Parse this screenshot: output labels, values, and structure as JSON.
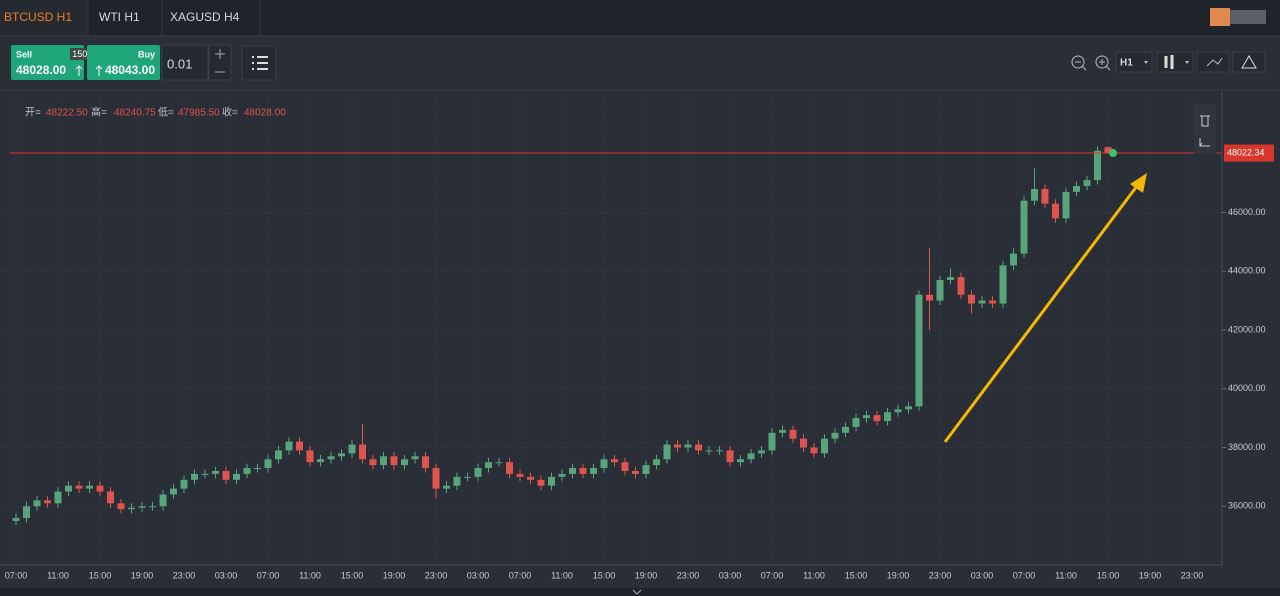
{
  "tabs": [
    "BTCUSD H1",
    "WTI H1",
    "XAGUSD H4"
  ],
  "trade_panel": {
    "sell_label": "Sell",
    "sell_price": "48028.00",
    "spread": "150.00",
    "buy_label": "Buy",
    "buy_price": "48043.00",
    "lot": "0.01"
  },
  "toolbar": {
    "timeframe": "H1"
  },
  "chart_data": {
    "type": "candlestick",
    "ohlc_labels": [
      "开=",
      "高=",
      "低=",
      "收="
    ],
    "ohlc_values": [
      "48222.50",
      "48240.75",
      "47985.50",
      "48028.00"
    ],
    "categories": [
      "07:00",
      null,
      null,
      null,
      "11:00",
      null,
      null,
      null,
      "15:00",
      null,
      null,
      null,
      "19:00",
      null,
      null,
      null,
      "23:00",
      null,
      null,
      null,
      "03:00",
      null,
      null,
      null,
      "07:00",
      null,
      null,
      null,
      "11:00",
      null,
      null,
      null,
      "15:00",
      null,
      null,
      null,
      "19:00",
      null,
      null,
      null,
      "23:00",
      null,
      null,
      null,
      "03:00",
      null,
      null,
      null,
      "07:00",
      null,
      null,
      null,
      "11:00",
      null,
      null,
      null,
      "15:00",
      null,
      null,
      null,
      "19:00",
      null,
      null,
      null,
      "23:00",
      null,
      null,
      null,
      "03:00",
      null,
      null,
      null,
      "07:00",
      null,
      null,
      null,
      "11:00",
      null,
      null,
      null,
      "15:00",
      null,
      null,
      null,
      "19:00",
      null,
      null,
      null,
      "23:00",
      null,
      null,
      null,
      "03:00",
      null,
      null,
      null,
      "07:00",
      null,
      null,
      null,
      "11:00",
      null,
      null,
      null,
      "15:00",
      null,
      null,
      null,
      "19:00",
      null,
      null,
      null,
      "23:00"
    ],
    "open": [
      35500,
      35600,
      36000,
      36200,
      36100,
      36500,
      36700,
      36600,
      36700,
      36500,
      36100,
      35900,
      35950,
      36000,
      36000,
      36400,
      36600,
      36900,
      37100,
      37100,
      37200,
      36900,
      37100,
      37300,
      37300,
      37600,
      37900,
      38200,
      37900,
      37500,
      37600,
      37700,
      37800,
      38100,
      37600,
      37400,
      37700,
      37400,
      37600,
      37700,
      37300,
      36600,
      36700,
      37000,
      37000,
      37300,
      37500,
      37500,
      37100,
      37000,
      36900,
      36700,
      37000,
      37100,
      37300,
      37100,
      37300,
      37600,
      37500,
      37200,
      37100,
      37400,
      37600,
      38100,
      38000,
      38100,
      37900,
      37900,
      37900,
      37500,
      37600,
      37800,
      37900,
      38500,
      38600,
      38300,
      38000,
      37800,
      38300,
      38500,
      38700,
      39000,
      39100,
      38900,
      39200,
      39300,
      39400,
      43200,
      43000,
      43700,
      43800,
      43200,
      42900,
      43000,
      42900,
      44200,
      44600,
      46400,
      46800,
      46300,
      45800,
      46700,
      46900,
      47100,
      48222.5,
      null,
      null,
      null,
      null,
      null,
      null,
      null,
      null
    ],
    "high": [
      35750,
      36150,
      36350,
      36350,
      36650,
      36850,
      36850,
      36850,
      36850,
      36650,
      36250,
      36100,
      36150,
      36150,
      36550,
      36750,
      37050,
      37250,
      37250,
      37350,
      37350,
      37250,
      37450,
      37450,
      37750,
      38050,
      38350,
      38350,
      38050,
      37750,
      37850,
      37950,
      38250,
      38800,
      37750,
      37850,
      37850,
      37750,
      37850,
      37850,
      37450,
      36850,
      37150,
      37150,
      37450,
      37650,
      37650,
      37650,
      37250,
      37150,
      37050,
      37150,
      37250,
      37450,
      37450,
      37450,
      37750,
      37750,
      37650,
      37350,
      37550,
      37750,
      38250,
      38250,
      38250,
      38250,
      38050,
      38050,
      38050,
      37750,
      37950,
      38050,
      38650,
      38750,
      38750,
      38450,
      38150,
      38450,
      38650,
      38850,
      39150,
      39250,
      39250,
      39350,
      39450,
      39550,
      43350,
      44800,
      43850,
      44100,
      43950,
      43350,
      43150,
      43150,
      44350,
      44800,
      46550,
      47500,
      46950,
      46450,
      46850,
      47050,
      47250,
      48250,
      48240.75,
      null,
      null,
      null,
      null,
      null,
      null,
      null,
      null
    ],
    "low": [
      35350,
      35450,
      35850,
      35950,
      35950,
      36350,
      36450,
      36450,
      36350,
      35950,
      35750,
      35750,
      35800,
      35850,
      35850,
      36250,
      36450,
      36750,
      36950,
      36950,
      36750,
      36750,
      36950,
      37150,
      37150,
      37450,
      37750,
      37750,
      37350,
      37350,
      37450,
      37550,
      37650,
      37450,
      37250,
      37250,
      37250,
      37250,
      37450,
      37150,
      36250,
      36450,
      36550,
      36850,
      36850,
      37150,
      37350,
      36950,
      36850,
      36750,
      36550,
      36550,
      36850,
      36950,
      36950,
      36950,
      37150,
      37350,
      37050,
      36950,
      36950,
      37250,
      37450,
      37850,
      37850,
      37750,
      37750,
      37750,
      37350,
      37350,
      37450,
      37650,
      37750,
      38350,
      38150,
      37850,
      37650,
      37650,
      38150,
      38350,
      38550,
      38850,
      38750,
      38750,
      39050,
      39150,
      39250,
      42000,
      42850,
      43550,
      43050,
      42550,
      42750,
      42750,
      42750,
      44050,
      44450,
      46250,
      46150,
      45650,
      45650,
      46550,
      46750,
      46950,
      47985.5,
      null,
      null,
      null,
      null,
      null,
      null,
      null,
      null
    ],
    "close": [
      35600,
      36000,
      36200,
      36100,
      36500,
      36700,
      36600,
      36700,
      36500,
      36100,
      35900,
      35950,
      36000,
      36000,
      36400,
      36600,
      36900,
      37100,
      37100,
      37200,
      36900,
      37100,
      37300,
      37300,
      37600,
      37900,
      38200,
      37900,
      37500,
      37600,
      37700,
      37800,
      38100,
      37600,
      37400,
      37700,
      37400,
      37600,
      37700,
      37300,
      36600,
      36700,
      37000,
      37000,
      37300,
      37500,
      37500,
      37100,
      37000,
      36900,
      36700,
      37000,
      37100,
      37300,
      37100,
      37300,
      37600,
      37500,
      37200,
      37100,
      37400,
      37600,
      38100,
      38000,
      38100,
      37900,
      37900,
      37900,
      37500,
      37600,
      37800,
      37900,
      38500,
      38600,
      38300,
      38000,
      37800,
      38300,
      38500,
      38700,
      39000,
      39100,
      38900,
      39200,
      39300,
      39400,
      43200,
      43000,
      43700,
      43800,
      43200,
      42900,
      43000,
      42900,
      44200,
      44600,
      46400,
      46800,
      46300,
      45800,
      46700,
      46900,
      47100,
      48100,
      48028,
      null,
      null,
      null,
      null,
      null,
      null,
      null,
      null
    ],
    "up_color": "#58a57c",
    "down_color": "#e0534f",
    "ylim": [
      34000,
      50100
    ],
    "yticks": [
      {
        "value": 36000,
        "label": "36000.00"
      },
      {
        "value": 38000,
        "label": "38000.00"
      },
      {
        "value": 40000,
        "label": "40000.00"
      },
      {
        "value": 42000,
        "label": "42000.00"
      },
      {
        "value": 44000,
        "label": "44000.00"
      },
      {
        "value": 46000,
        "label": "46000.00"
      }
    ],
    "grid": true,
    "current_price": 48022.34,
    "current_price_color": "#d9362b"
  }
}
